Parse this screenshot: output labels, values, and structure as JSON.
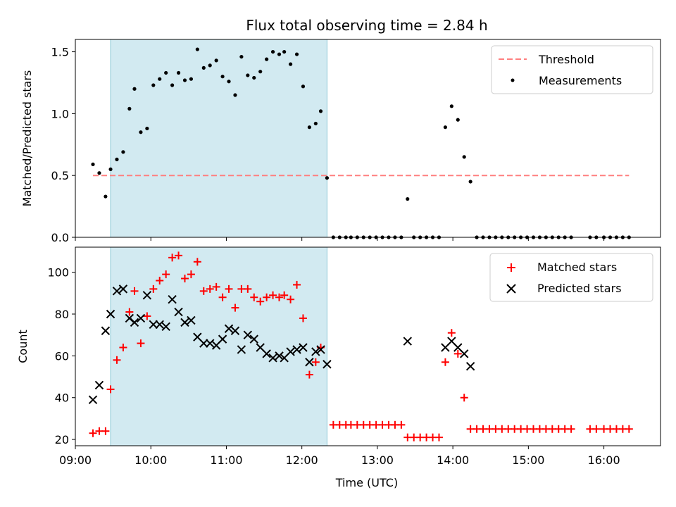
{
  "chart_data": [
    {
      "type": "scatter",
      "title": "Flux total observing time = 2.84 h",
      "xlabel": "",
      "ylabel": "Matched/Predicted stars",
      "x_unit": "time (UTC)",
      "xlim": [
        "09:00",
        "16:45"
      ],
      "ylim": [
        0,
        1.6
      ],
      "yticks": [
        0.0,
        0.5,
        1.0,
        1.5
      ],
      "ytick_labels": [
        "0.0",
        "0.5",
        "1.0",
        "1.5"
      ],
      "grid": false,
      "legend_position": "top-right",
      "legend": [
        "Threshold",
        "Measurements"
      ],
      "shaded_interval": {
        "from": "09:28",
        "to": "12:20",
        "color": "#add8e6"
      },
      "threshold": {
        "name": "Threshold",
        "value": 0.5,
        "x_from": "09:14",
        "x_to": "16:20",
        "color": "#ff7f7f",
        "style": "dashed"
      },
      "series": [
        {
          "name": "Measurements",
          "color": "#000000",
          "marker": "dot",
          "points": [
            [
              "09:14",
              0.59
            ],
            [
              "09:19",
              0.52
            ],
            [
              "09:24",
              0.33
            ],
            [
              "09:28",
              0.55
            ],
            [
              "09:33",
              0.63
            ],
            [
              "09:38",
              0.69
            ],
            [
              "09:43",
              1.04
            ],
            [
              "09:47",
              1.2
            ],
            [
              "09:52",
              0.85
            ],
            [
              "09:57",
              0.88
            ],
            [
              "10:02",
              1.23
            ],
            [
              "10:07",
              1.28
            ],
            [
              "10:12",
              1.33
            ],
            [
              "10:17",
              1.23
            ],
            [
              "10:22",
              1.33
            ],
            [
              "10:27",
              1.27
            ],
            [
              "10:32",
              1.28
            ],
            [
              "10:37",
              1.52
            ],
            [
              "10:42",
              1.37
            ],
            [
              "10:47",
              1.39
            ],
            [
              "10:52",
              1.43
            ],
            [
              "10:57",
              1.3
            ],
            [
              "11:02",
              1.26
            ],
            [
              "11:07",
              1.15
            ],
            [
              "11:12",
              1.46
            ],
            [
              "11:17",
              1.31
            ],
            [
              "11:22",
              1.29
            ],
            [
              "11:27",
              1.34
            ],
            [
              "11:32",
              1.44
            ],
            [
              "11:37",
              1.5
            ],
            [
              "11:42",
              1.48
            ],
            [
              "11:46",
              1.5
            ],
            [
              "11:51",
              1.4
            ],
            [
              "11:56",
              1.48
            ],
            [
              "12:01",
              1.22
            ],
            [
              "12:06",
              0.89
            ],
            [
              "12:11",
              0.92
            ],
            [
              "12:15",
              1.02
            ],
            [
              "12:20",
              0.48
            ],
            [
              "12:25",
              0.0
            ],
            [
              "12:30",
              0.0
            ],
            [
              "12:35",
              0.0
            ],
            [
              "12:39",
              0.0
            ],
            [
              "12:44",
              0.0
            ],
            [
              "12:49",
              0.0
            ],
            [
              "12:54",
              0.0
            ],
            [
              "12:59",
              0.0
            ],
            [
              "13:04",
              0.0
            ],
            [
              "13:09",
              0.0
            ],
            [
              "13:14",
              0.0
            ],
            [
              "13:19",
              0.0
            ],
            [
              "13:24",
              0.31
            ],
            [
              "13:29",
              0.0
            ],
            [
              "13:34",
              0.0
            ],
            [
              "13:39",
              0.0
            ],
            [
              "13:44",
              0.0
            ],
            [
              "13:49",
              0.0
            ],
            [
              "13:54",
              0.89
            ],
            [
              "13:59",
              1.06
            ],
            [
              "14:04",
              0.95
            ],
            [
              "14:09",
              0.65
            ],
            [
              "14:14",
              0.45
            ],
            [
              "14:19",
              0.0
            ],
            [
              "14:24",
              0.0
            ],
            [
              "14:29",
              0.0
            ],
            [
              "14:34",
              0.0
            ],
            [
              "14:39",
              0.0
            ],
            [
              "14:44",
              0.0
            ],
            [
              "14:49",
              0.0
            ],
            [
              "14:54",
              0.0
            ],
            [
              "14:59",
              0.0
            ],
            [
              "15:04",
              0.0
            ],
            [
              "15:09",
              0.0
            ],
            [
              "15:14",
              0.0
            ],
            [
              "15:19",
              0.0
            ],
            [
              "15:24",
              0.0
            ],
            [
              "15:29",
              0.0
            ],
            [
              "15:34",
              0.0
            ],
            [
              "15:49",
              0.0
            ],
            [
              "15:54",
              0.0
            ],
            [
              "16:00",
              0.0
            ],
            [
              "16:05",
              0.0
            ],
            [
              "16:10",
              0.0
            ],
            [
              "16:15",
              0.0
            ],
            [
              "16:20",
              0.0
            ]
          ]
        }
      ]
    },
    {
      "type": "scatter",
      "title": "",
      "xlabel": "Time (UTC)",
      "ylabel": "Count",
      "xlim": [
        "09:00",
        "16:45"
      ],
      "ylim": [
        17,
        112
      ],
      "yticks": [
        20,
        40,
        60,
        80,
        100
      ],
      "ytick_labels": [
        "20",
        "40",
        "60",
        "80",
        "100"
      ],
      "xticks": [
        "09:00",
        "10:00",
        "11:00",
        "12:00",
        "13:00",
        "14:00",
        "15:00",
        "16:00"
      ],
      "xtick_labels": [
        "09:00",
        "10:00",
        "11:00",
        "12:00",
        "13:00",
        "14:00",
        "15:00",
        "16:00"
      ],
      "grid": false,
      "legend_position": "top-right",
      "legend": [
        "Matched stars",
        "Predicted stars"
      ],
      "shaded_interval": {
        "from": "09:28",
        "to": "12:20",
        "color": "#add8e6"
      },
      "series": [
        {
          "name": "Matched stars",
          "color": "#ff0000",
          "marker": "plus",
          "points": [
            [
              "09:14",
              23
            ],
            [
              "09:19",
              24
            ],
            [
              "09:24",
              24
            ],
            [
              "09:28",
              44
            ],
            [
              "09:33",
              58
            ],
            [
              "09:38",
              64
            ],
            [
              "09:43",
              81
            ],
            [
              "09:47",
              91
            ],
            [
              "09:52",
              66
            ],
            [
              "09:57",
              79
            ],
            [
              "10:02",
              92
            ],
            [
              "10:07",
              96
            ],
            [
              "10:12",
              99
            ],
            [
              "10:17",
              107
            ],
            [
              "10:22",
              108
            ],
            [
              "10:27",
              97
            ],
            [
              "10:32",
              99
            ],
            [
              "10:37",
              105
            ],
            [
              "10:42",
              91
            ],
            [
              "10:47",
              92
            ],
            [
              "10:52",
              93
            ],
            [
              "10:57",
              88
            ],
            [
              "11:02",
              92
            ],
            [
              "11:07",
              83
            ],
            [
              "11:12",
              92
            ],
            [
              "11:17",
              92
            ],
            [
              "11:22",
              88
            ],
            [
              "11:27",
              86
            ],
            [
              "11:32",
              88
            ],
            [
              "11:37",
              89
            ],
            [
              "11:42",
              88
            ],
            [
              "11:46",
              89
            ],
            [
              "11:51",
              87
            ],
            [
              "11:56",
              94
            ],
            [
              "12:01",
              78
            ],
            [
              "12:06",
              51
            ],
            [
              "12:11",
              57
            ],
            [
              "12:15",
              64
            ],
            [
              "12:25",
              27
            ],
            [
              "12:30",
              27
            ],
            [
              "12:35",
              27
            ],
            [
              "12:39",
              27
            ],
            [
              "12:44",
              27
            ],
            [
              "12:49",
              27
            ],
            [
              "12:54",
              27
            ],
            [
              "12:59",
              27
            ],
            [
              "13:04",
              27
            ],
            [
              "13:09",
              27
            ],
            [
              "13:14",
              27
            ],
            [
              "13:19",
              27
            ],
            [
              "13:24",
              21
            ],
            [
              "13:29",
              21
            ],
            [
              "13:34",
              21
            ],
            [
              "13:39",
              21
            ],
            [
              "13:44",
              21
            ],
            [
              "13:49",
              21
            ],
            [
              "13:54",
              57
            ],
            [
              "13:59",
              71
            ],
            [
              "14:04",
              61
            ],
            [
              "14:09",
              40
            ],
            [
              "14:14",
              25
            ],
            [
              "14:19",
              25
            ],
            [
              "14:24",
              25
            ],
            [
              "14:29",
              25
            ],
            [
              "14:34",
              25
            ],
            [
              "14:39",
              25
            ],
            [
              "14:44",
              25
            ],
            [
              "14:49",
              25
            ],
            [
              "14:54",
              25
            ],
            [
              "14:59",
              25
            ],
            [
              "15:04",
              25
            ],
            [
              "15:09",
              25
            ],
            [
              "15:14",
              25
            ],
            [
              "15:19",
              25
            ],
            [
              "15:24",
              25
            ],
            [
              "15:29",
              25
            ],
            [
              "15:34",
              25
            ],
            [
              "15:49",
              25
            ],
            [
              "15:54",
              25
            ],
            [
              "16:00",
              25
            ],
            [
              "16:05",
              25
            ],
            [
              "16:10",
              25
            ],
            [
              "16:15",
              25
            ],
            [
              "16:20",
              25
            ]
          ]
        },
        {
          "name": "Predicted stars",
          "color": "#000000",
          "marker": "x",
          "points": [
            [
              "09:14",
              39
            ],
            [
              "09:19",
              46
            ],
            [
              "09:24",
              72
            ],
            [
              "09:28",
              80
            ],
            [
              "09:33",
              91
            ],
            [
              "09:38",
              92
            ],
            [
              "09:43",
              78
            ],
            [
              "09:47",
              76
            ],
            [
              "09:52",
              78
            ],
            [
              "09:57",
              89
            ],
            [
              "10:02",
              75
            ],
            [
              "10:07",
              75
            ],
            [
              "10:12",
              74
            ],
            [
              "10:17",
              87
            ],
            [
              "10:22",
              81
            ],
            [
              "10:27",
              76
            ],
            [
              "10:32",
              77
            ],
            [
              "10:37",
              69
            ],
            [
              "10:42",
              66
            ],
            [
              "10:47",
              66
            ],
            [
              "10:52",
              65
            ],
            [
              "10:57",
              68
            ],
            [
              "11:02",
              73
            ],
            [
              "11:07",
              72
            ],
            [
              "11:12",
              63
            ],
            [
              "11:17",
              70
            ],
            [
              "11:22",
              68
            ],
            [
              "11:27",
              64
            ],
            [
              "11:32",
              61
            ],
            [
              "11:37",
              59
            ],
            [
              "11:42",
              60
            ],
            [
              "11:46",
              59
            ],
            [
              "11:51",
              62
            ],
            [
              "11:56",
              63
            ],
            [
              "12:01",
              64
            ],
            [
              "12:06",
              57
            ],
            [
              "12:11",
              62
            ],
            [
              "12:15",
              63
            ],
            [
              "12:20",
              56
            ],
            [
              "13:24",
              67
            ],
            [
              "13:54",
              64
            ],
            [
              "13:59",
              67
            ],
            [
              "14:04",
              64
            ],
            [
              "14:09",
              61
            ],
            [
              "14:14",
              55
            ]
          ]
        }
      ]
    }
  ]
}
